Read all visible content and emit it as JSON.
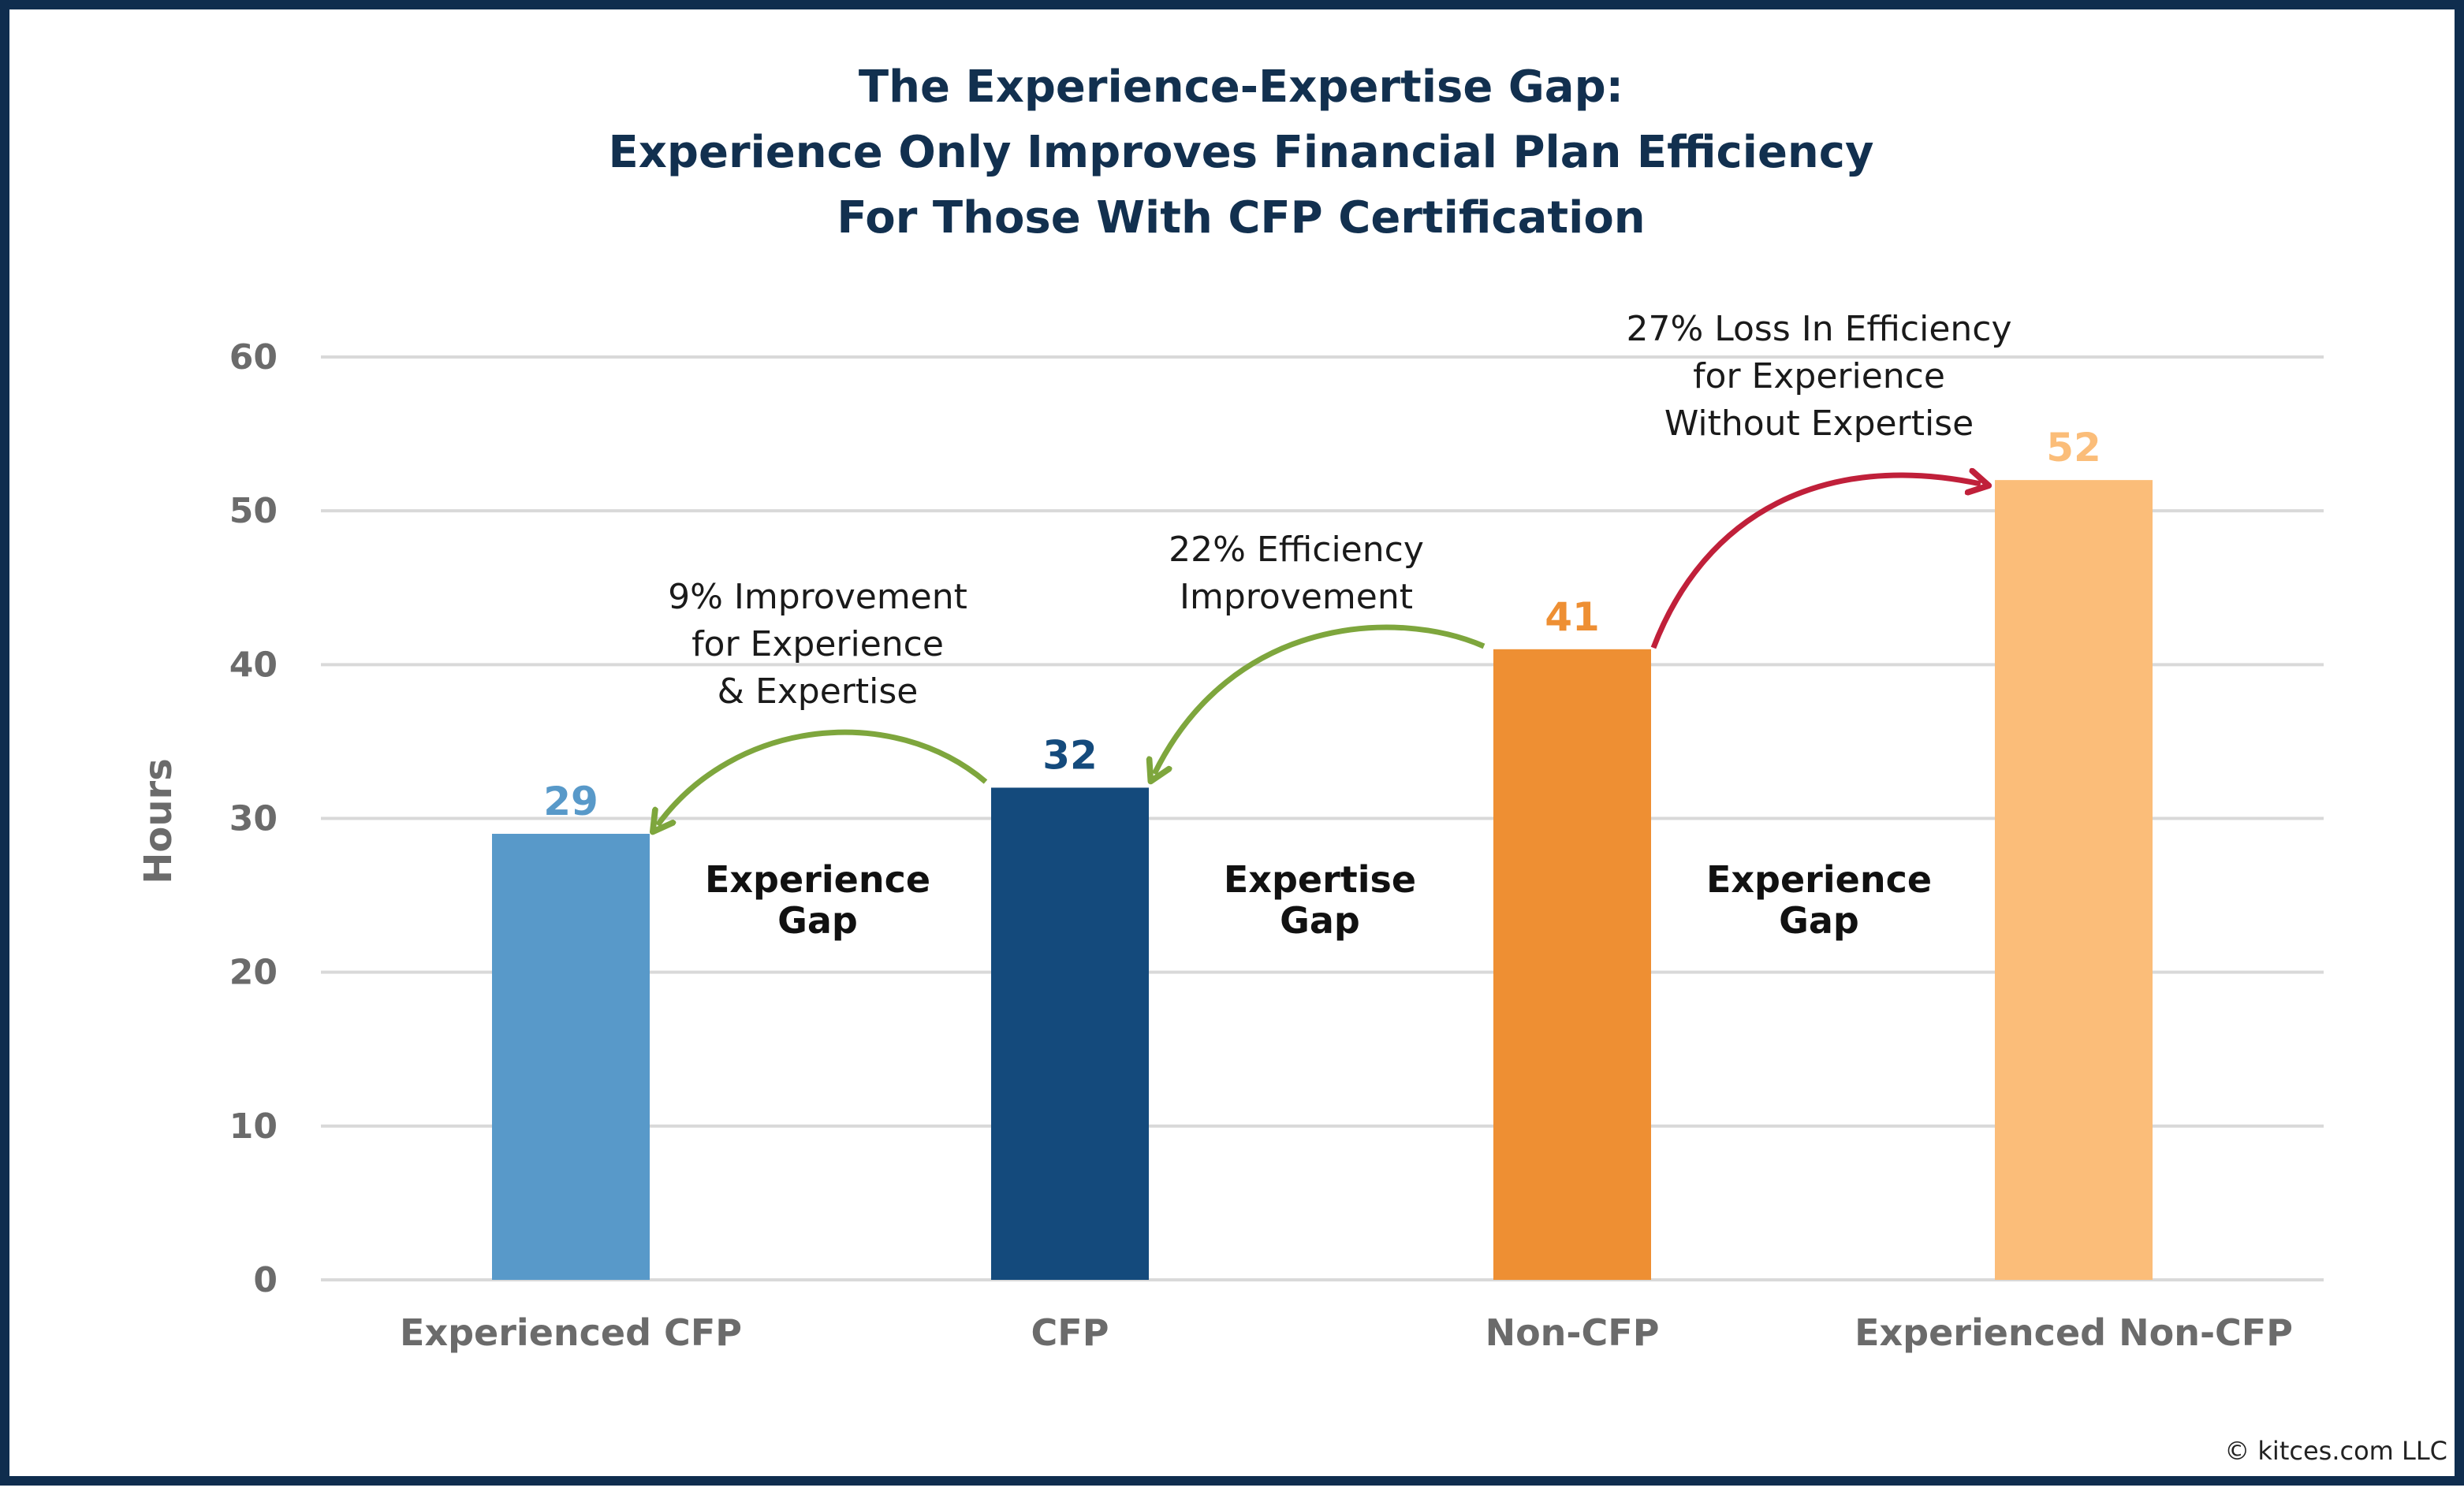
{
  "chart_data": {
    "type": "bar",
    "title_lines": [
      "The Experience-Expertise Gap:",
      "Experience Only Improves Financial Plan Efficiency",
      "For Those With CFP Certification"
    ],
    "ylabel": "Hours",
    "xlabel": "",
    "ylim": [
      0,
      60
    ],
    "yticks": [
      "0",
      "10",
      "20",
      "30",
      "40",
      "50",
      "60"
    ],
    "grid": true,
    "categories": [
      "Experienced CFP",
      "CFP",
      "Non-CFP",
      "Experienced Non-CFP"
    ],
    "values": [
      29,
      32,
      41,
      52
    ],
    "value_labels": [
      "29",
      "32",
      "41",
      "52"
    ],
    "bar_colors": [
      "#5899c9",
      "#144a7c",
      "#ee8f33",
      "#fbbd79"
    ],
    "annotations": [
      {
        "lines": [
          "9% Improvement",
          "for Experience",
          "& Expertise"
        ],
        "from": "CFP",
        "to": "Experienced CFP",
        "color": "#7ea63d"
      },
      {
        "lines": [
          "22% Efficiency",
          "Improvement"
        ],
        "from": "Non-CFP",
        "to": "CFP",
        "color": "#7ea63d"
      },
      {
        "lines": [
          "27% Loss In Efficiency",
          "for Experience",
          "Without Expertise"
        ],
        "from": "Non-CFP",
        "to": "Experienced Non-CFP",
        "color": "#c0203a"
      }
    ],
    "gap_labels": [
      {
        "lines": [
          "Experience",
          "Gap"
        ]
      },
      {
        "lines": [
          "Expertise",
          "Gap"
        ]
      },
      {
        "lines": [
          "Experience",
          "Gap"
        ]
      }
    ]
  },
  "copyright": "© kitces.com LLC",
  "colors": {
    "border": "#0f2d4e",
    "title": "#12304f",
    "axis_text": "#6b6b6b",
    "gridline": "#d9d9d9"
  }
}
